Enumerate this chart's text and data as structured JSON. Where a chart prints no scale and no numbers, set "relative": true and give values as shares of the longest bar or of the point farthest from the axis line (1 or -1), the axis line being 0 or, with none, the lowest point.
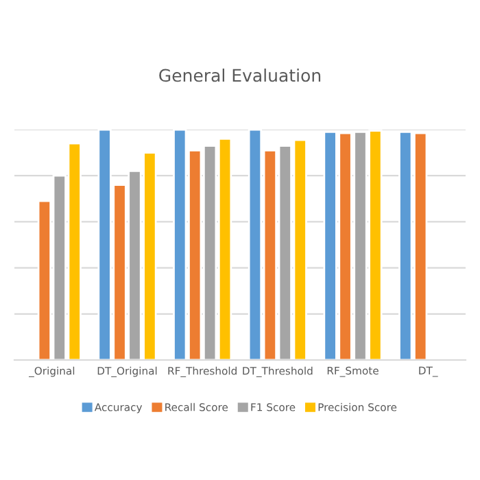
{
  "chart_data": {
    "type": "bar",
    "title": "General Evaluation",
    "relative": true,
    "categories": [
      "_Original",
      "DT_Original",
      "RF_Threshold",
      "DT_Threshold",
      "RF_Smote",
      "DT_"
    ],
    "series": [
      {
        "name": "Accuracy",
        "color": "#5b9bd5",
        "values": [
          null,
          1.0,
          1.0,
          1.0,
          0.99,
          0.99
        ]
      },
      {
        "name": "Recall Score",
        "color": "#ed7d31",
        "values": [
          0.69,
          0.76,
          0.91,
          0.91,
          0.985,
          0.985
        ]
      },
      {
        "name": "F1 Score",
        "color": "#a5a5a5",
        "values": [
          0.8,
          0.82,
          0.93,
          0.93,
          0.99,
          null
        ]
      },
      {
        "name": "Precision Score",
        "color": "#ffc000",
        "values": [
          0.94,
          0.9,
          0.96,
          0.955,
          0.995,
          null
        ]
      }
    ],
    "grid": "y",
    "legend": "bottom"
  }
}
